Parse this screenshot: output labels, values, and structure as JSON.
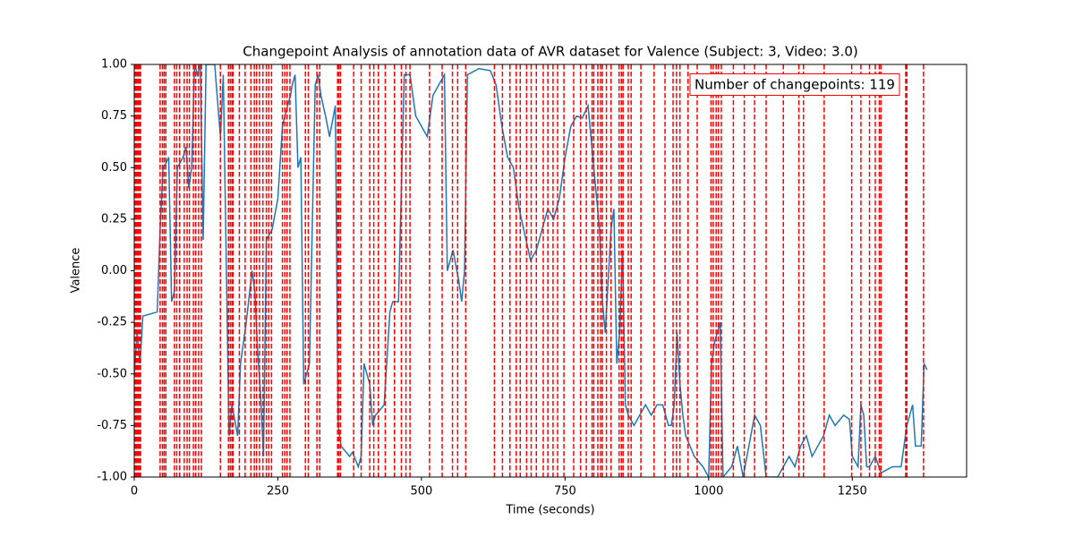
{
  "chart_data": {
    "type": "line",
    "title": "Changepoint Analysis of annotation data of AVR dataset for Valence (Subject: 3, Video: 3.0)",
    "xlabel": "Time (seconds)",
    "ylabel": "Valence",
    "annotation": "Number of changepoints: 119",
    "color": "#1f77b4",
    "changepoint_color": "#ff0000",
    "xlim": [
      0,
      1449
    ],
    "ylim": [
      -1,
      1
    ],
    "xticks": [
      0,
      250,
      500,
      750,
      1000,
      1250
    ],
    "yticks": [
      {
        "value": -1,
        "label": "-1.00"
      },
      -0.75,
      {
        "value": -0.5,
        "label": "-0.50"
      },
      -0.25,
      {
        "value": 0,
        "label": "0.00"
      },
      0.25,
      {
        "value": 0.5,
        "label": "0.50"
      },
      0.75,
      {
        "value": 1,
        "label": "1.00"
      }
    ],
    "x": [
      0,
      5,
      10,
      15,
      40,
      45,
      50,
      55,
      60,
      65,
      70,
      75,
      85,
      90,
      95,
      100,
      105,
      110,
      115,
      120,
      125,
      140,
      150,
      155,
      165,
      170,
      180,
      185,
      195,
      205,
      210,
      215,
      220,
      225,
      230,
      240,
      250,
      258,
      265,
      272,
      275,
      280,
      285,
      290,
      295,
      305,
      315,
      320,
      325,
      333,
      340,
      350,
      355,
      360,
      375,
      380,
      390,
      395,
      400,
      410,
      415,
      420,
      435,
      445,
      450,
      460,
      470,
      480,
      490,
      500,
      510,
      520,
      530,
      540,
      545,
      555,
      565,
      570,
      575,
      580,
      600,
      620,
      630,
      640,
      650,
      660,
      670,
      690,
      700,
      710,
      720,
      730,
      740,
      750,
      760,
      770,
      780,
      790,
      800,
      810,
      815,
      820,
      830,
      835,
      840,
      845,
      850,
      855,
      860,
      870,
      880,
      890,
      900,
      910,
      920,
      930,
      935,
      940,
      945,
      950,
      955,
      960,
      975,
      990,
      1000,
      1005,
      1010,
      1015,
      1020,
      1025,
      1040,
      1050,
      1060,
      1080,
      1090,
      1100,
      1120,
      1140,
      1150,
      1160,
      1170,
      1180,
      1190,
      1200,
      1210,
      1220,
      1235,
      1245,
      1250,
      1260,
      1265,
      1270,
      1275,
      1280,
      1290,
      1300,
      1320,
      1335,
      1345,
      1355,
      1360,
      1370,
      1375,
      1380
    ],
    "values": [
      -0.5,
      -0.3,
      -0.45,
      -0.22,
      -0.2,
      0.2,
      0.5,
      0.52,
      0.55,
      -0.15,
      -0.1,
      0.5,
      0.55,
      0.6,
      0.4,
      0.5,
      1.0,
      0.95,
      1.0,
      0.15,
      1.0,
      1.0,
      0.65,
      0.95,
      -0.8,
      -0.65,
      -0.8,
      -0.45,
      -0.25,
      0.0,
      -0.1,
      -0.4,
      -0.6,
      -0.9,
      0.15,
      0.2,
      0.35,
      0.7,
      0.78,
      0.85,
      0.9,
      0.95,
      0.5,
      0.55,
      -0.55,
      -0.45,
      0.9,
      0.95,
      0.85,
      0.75,
      0.65,
      0.8,
      -0.75,
      -0.85,
      -0.9,
      -0.88,
      -0.95,
      -0.9,
      -0.45,
      -0.55,
      -0.75,
      -0.7,
      -0.65,
      -0.2,
      -0.15,
      -0.15,
      0.95,
      0.95,
      0.75,
      0.7,
      0.65,
      0.85,
      0.9,
      0.95,
      0.0,
      0.1,
      -0.05,
      -0.15,
      0.0,
      0.95,
      0.98,
      0.97,
      0.9,
      0.7,
      0.55,
      0.5,
      0.3,
      0.05,
      0.1,
      0.2,
      0.3,
      0.25,
      0.35,
      0.55,
      0.7,
      0.75,
      0.74,
      0.8,
      0.5,
      0.2,
      -0.15,
      -0.3,
      0.2,
      0.3,
      -0.45,
      -0.3,
      0.1,
      -0.65,
      -0.7,
      -0.75,
      -0.7,
      -0.65,
      -0.7,
      -0.65,
      -0.65,
      -0.75,
      -0.75,
      -0.65,
      -0.3,
      -0.55,
      -0.7,
      -0.8,
      -0.9,
      -0.95,
      -1.0,
      -0.45,
      -0.35,
      -0.3,
      -0.25,
      -1.0,
      -0.95,
      -0.85,
      -1.0,
      -0.7,
      -0.75,
      -1.0,
      -1.0,
      -0.9,
      -0.95,
      -0.85,
      -0.8,
      -0.9,
      -0.85,
      -0.8,
      -0.7,
      -0.75,
      -0.7,
      -0.72,
      -0.9,
      -0.95,
      -0.65,
      -0.7,
      -0.95,
      -0.95,
      -0.9,
      -0.98,
      -0.95,
      -0.95,
      -0.75,
      -0.65,
      -0.85,
      -0.85,
      -0.45,
      -0.48
    ],
    "changepoints": [
      1,
      3,
      5,
      7,
      9,
      11,
      45,
      49,
      52,
      55,
      70,
      74,
      79,
      87,
      92,
      96,
      103,
      107,
      112,
      117,
      150,
      164,
      167,
      170,
      172,
      183,
      193,
      203,
      209,
      213,
      218,
      224,
      230,
      234,
      239,
      258,
      262,
      266,
      271,
      298,
      303,
      318,
      323,
      354,
      356,
      359,
      382,
      395,
      410,
      417,
      425,
      437,
      453,
      465,
      473,
      480,
      514,
      536,
      554,
      563,
      577,
      627,
      641,
      654,
      665,
      672,
      683,
      691,
      700,
      712,
      720,
      729,
      737,
      748,
      765,
      777,
      787,
      797,
      800,
      807,
      812,
      815,
      822,
      830,
      844,
      848,
      851,
      860,
      865,
      882,
      905,
      924,
      938,
      944,
      950,
      964,
      980,
      1004,
      1008,
      1013,
      1017,
      1022,
      1043,
      1062,
      1080,
      1100,
      1130,
      1157,
      1165,
      1201,
      1249,
      1265,
      1280,
      1290,
      1297,
      1300,
      1343,
      1345,
      1374
    ]
  }
}
